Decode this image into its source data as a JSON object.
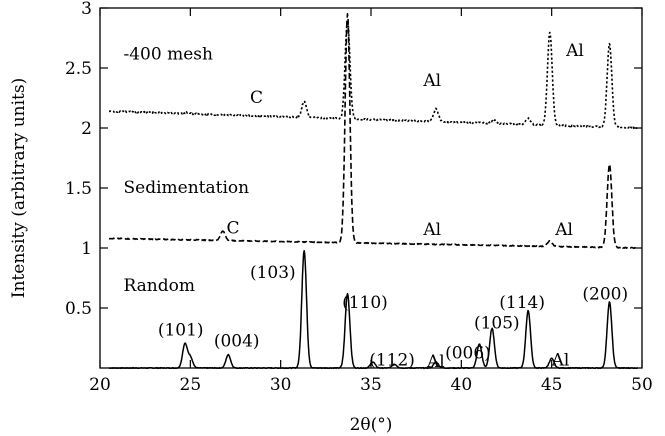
{
  "chart_data": {
    "type": "line",
    "xlabel": "2θ(°)",
    "ylabel": "Intensity (arbitrary units)",
    "xlim": [
      20,
      50
    ],
    "ylim": [
      0,
      3
    ],
    "xticks": [
      "20",
      "25",
      "30",
      "35",
      "40",
      "45",
      "50"
    ],
    "yticks": [
      "0.5",
      "1",
      "1.5",
      "2",
      "2.5",
      "3"
    ],
    "grid": false,
    "series": [
      {
        "name": "Random",
        "style": "solid",
        "baseline": 0.0,
        "peaks": [
          {
            "x": 24.7,
            "y": 0.2
          },
          {
            "x": 25.0,
            "y": 0.09
          },
          {
            "x": 27.1,
            "y": 0.11
          },
          {
            "x": 31.3,
            "y": 0.98
          },
          {
            "x": 33.7,
            "y": 0.62
          },
          {
            "x": 35.1,
            "y": 0.05
          },
          {
            "x": 36.3,
            "y": 0.03
          },
          {
            "x": 38.6,
            "y": 0.05
          },
          {
            "x": 41.0,
            "y": 0.2
          },
          {
            "x": 41.7,
            "y": 0.33
          },
          {
            "x": 43.7,
            "y": 0.48
          },
          {
            "x": 45.0,
            "y": 0.08
          },
          {
            "x": 48.2,
            "y": 0.55
          }
        ]
      },
      {
        "name": "Sedimentation",
        "style": "dashed",
        "baseline": 1.08,
        "baseline_end": 1.0,
        "peaks": [
          {
            "x": 26.8,
            "y": 1.14
          },
          {
            "x": 33.7,
            "y": 2.95
          },
          {
            "x": 38.6,
            "y": 1.03
          },
          {
            "x": 44.9,
            "y": 1.06
          },
          {
            "x": 48.2,
            "y": 1.7
          }
        ]
      },
      {
        "name": "-400 mesh",
        "style": "dotted",
        "baseline": 2.14,
        "baseline_end": 2.0,
        "peaks": [
          {
            "x": 24.8,
            "y": 2.13
          },
          {
            "x": 31.3,
            "y": 2.22
          },
          {
            "x": 33.7,
            "y": 2.9
          },
          {
            "x": 38.6,
            "y": 2.16
          },
          {
            "x": 41.8,
            "y": 2.07
          },
          {
            "x": 43.7,
            "y": 2.08
          },
          {
            "x": 44.9,
            "y": 2.8
          },
          {
            "x": 48.2,
            "y": 2.7
          }
        ]
      }
    ],
    "annotations": [
      {
        "text": "-400 mesh",
        "x": 21.3,
        "y": 2.57
      },
      {
        "text": "C",
        "x": 28.3,
        "y": 2.21
      },
      {
        "text": "Al",
        "x": 37.9,
        "y": 2.35
      },
      {
        "text": "Al",
        "x": 45.8,
        "y": 2.6
      },
      {
        "text": "Sedimentation",
        "x": 21.3,
        "y": 1.46
      },
      {
        "text": "C",
        "x": 27.0,
        "y": 1.12
      },
      {
        "text": "Al",
        "x": 37.9,
        "y": 1.11
      },
      {
        "text": "Al",
        "x": 45.2,
        "y": 1.11
      },
      {
        "text": "Random",
        "x": 21.3,
        "y": 0.64
      },
      {
        "text": "(103)",
        "x": 28.3,
        "y": 0.75
      },
      {
        "text": "(110)",
        "x": 33.4,
        "y": 0.5
      },
      {
        "text": "(101)",
        "x": 23.2,
        "y": 0.27
      },
      {
        "text": "(004)",
        "x": 26.3,
        "y": 0.18
      },
      {
        "text": "(112)",
        "x": 34.9,
        "y": 0.02
      },
      {
        "text": "Al",
        "x": 38.1,
        "y": 0.01
      },
      {
        "text": "(006)",
        "x": 39.1,
        "y": 0.08
      },
      {
        "text": "(105)",
        "x": 40.7,
        "y": 0.33
      },
      {
        "text": "(114)",
        "x": 42.1,
        "y": 0.5
      },
      {
        "text": "Al",
        "x": 45.0,
        "y": 0.02
      },
      {
        "text": "(200)",
        "x": 46.7,
        "y": 0.57
      }
    ]
  }
}
